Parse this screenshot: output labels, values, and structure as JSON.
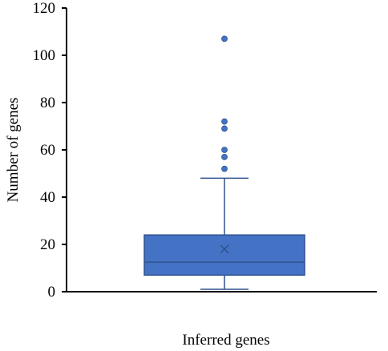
{
  "chart_data": {
    "type": "box",
    "xlabel": "Inferred genes",
    "ylabel": "Number of genes",
    "ylim": [
      0,
      120
    ],
    "yticks": [
      0,
      20,
      40,
      60,
      80,
      100,
      120
    ],
    "grid": false,
    "box": {
      "category": "Inferred genes",
      "whisker_low": 1,
      "q1": 7,
      "median": 12.5,
      "mean": 18,
      "q3": 24,
      "whisker_high": 48,
      "outliers": [
        52,
        57,
        60,
        69,
        72,
        107
      ]
    },
    "colors": {
      "box_fill": "#4472C4",
      "box_edge": "#2F528F",
      "outlier": "#4472C4",
      "axis": "#000000"
    }
  }
}
